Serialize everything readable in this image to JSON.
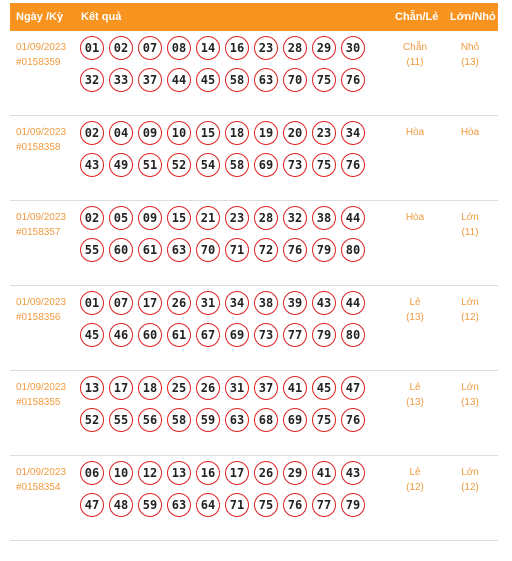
{
  "header": {
    "date_col": "Ngày /Kỳ",
    "result_col": "Kết quả",
    "evenodd_col": "Chẵn/Lẻ",
    "bigsmall_col": "Lớn/Nhỏ"
  },
  "colors": {
    "header_bg": "#f7931e",
    "accent_text": "#f19a3e",
    "ball_border": "#e02020"
  },
  "rows": [
    {
      "date": "01/09/2023",
      "draw_id": "#0158359",
      "numbers": [
        "01",
        "02",
        "07",
        "08",
        "14",
        "16",
        "23",
        "28",
        "29",
        "30",
        "32",
        "33",
        "37",
        "44",
        "45",
        "58",
        "63",
        "70",
        "75",
        "76"
      ],
      "even_odd": "Chẵn",
      "even_odd_count": "(11)",
      "big_small": "Nhỏ",
      "big_small_count": "(13)"
    },
    {
      "date": "01/09/2023",
      "draw_id": "#0158358",
      "numbers": [
        "02",
        "04",
        "09",
        "10",
        "15",
        "18",
        "19",
        "20",
        "23",
        "34",
        "43",
        "49",
        "51",
        "52",
        "54",
        "58",
        "69",
        "73",
        "75",
        "76"
      ],
      "even_odd": "Hòa",
      "even_odd_count": "",
      "big_small": "Hòa",
      "big_small_count": ""
    },
    {
      "date": "01/09/2023",
      "draw_id": "#0158357",
      "numbers": [
        "02",
        "05",
        "09",
        "15",
        "21",
        "23",
        "28",
        "32",
        "38",
        "44",
        "55",
        "60",
        "61",
        "63",
        "70",
        "71",
        "72",
        "76",
        "79",
        "80"
      ],
      "even_odd": "Hòa",
      "even_odd_count": "",
      "big_small": "Lớn",
      "big_small_count": "(11)"
    },
    {
      "date": "01/09/2023",
      "draw_id": "#0158356",
      "numbers": [
        "01",
        "07",
        "17",
        "26",
        "31",
        "34",
        "38",
        "39",
        "43",
        "44",
        "45",
        "46",
        "60",
        "61",
        "67",
        "69",
        "73",
        "77",
        "79",
        "80"
      ],
      "even_odd": "Lẻ",
      "even_odd_count": "(13)",
      "big_small": "Lớn",
      "big_small_count": "(12)"
    },
    {
      "date": "01/09/2023",
      "draw_id": "#0158355",
      "numbers": [
        "13",
        "17",
        "18",
        "25",
        "26",
        "31",
        "37",
        "41",
        "45",
        "47",
        "52",
        "55",
        "56",
        "58",
        "59",
        "63",
        "68",
        "69",
        "75",
        "76"
      ],
      "even_odd": "Lẻ",
      "even_odd_count": "(13)",
      "big_small": "Lớn",
      "big_small_count": "(13)"
    },
    {
      "date": "01/09/2023",
      "draw_id": "#0158354",
      "numbers": [
        "06",
        "10",
        "12",
        "13",
        "16",
        "17",
        "26",
        "29",
        "41",
        "43",
        "47",
        "48",
        "59",
        "63",
        "64",
        "71",
        "75",
        "76",
        "77",
        "79"
      ],
      "even_odd": "Lẻ",
      "even_odd_count": "(12)",
      "big_small": "Lớn",
      "big_small_count": "(12)"
    }
  ]
}
